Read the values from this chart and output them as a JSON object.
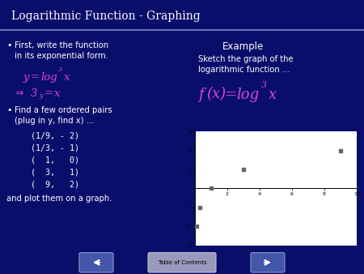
{
  "title": "Logarithmic Function - Graphing",
  "slide_bg": "#0a0e6b",
  "text_color": "#ffffff",
  "magenta_color": "#dd44dd",
  "pairs": [
    "(1/9, - 2)",
    "(1/3, - 1)",
    "(  1,   0)",
    "(  3,   1)",
    "(  9,   2)"
  ],
  "plot_points_x": [
    0.111,
    0.333,
    1.0,
    3.0,
    9.0
  ],
  "plot_points_y": [
    -2,
    -1,
    0,
    1,
    2
  ],
  "plot_xlim": [
    0,
    10
  ],
  "plot_ylim": [
    -3,
    3
  ],
  "plot_xticks": [
    0,
    2,
    4,
    6,
    8,
    10
  ],
  "plot_yticks": [
    -3,
    -2,
    -1,
    0,
    1,
    2,
    3
  ],
  "nav_bg": "#080b5a",
  "toc_label": "Table of Contents",
  "separator_color": "#8888cc"
}
